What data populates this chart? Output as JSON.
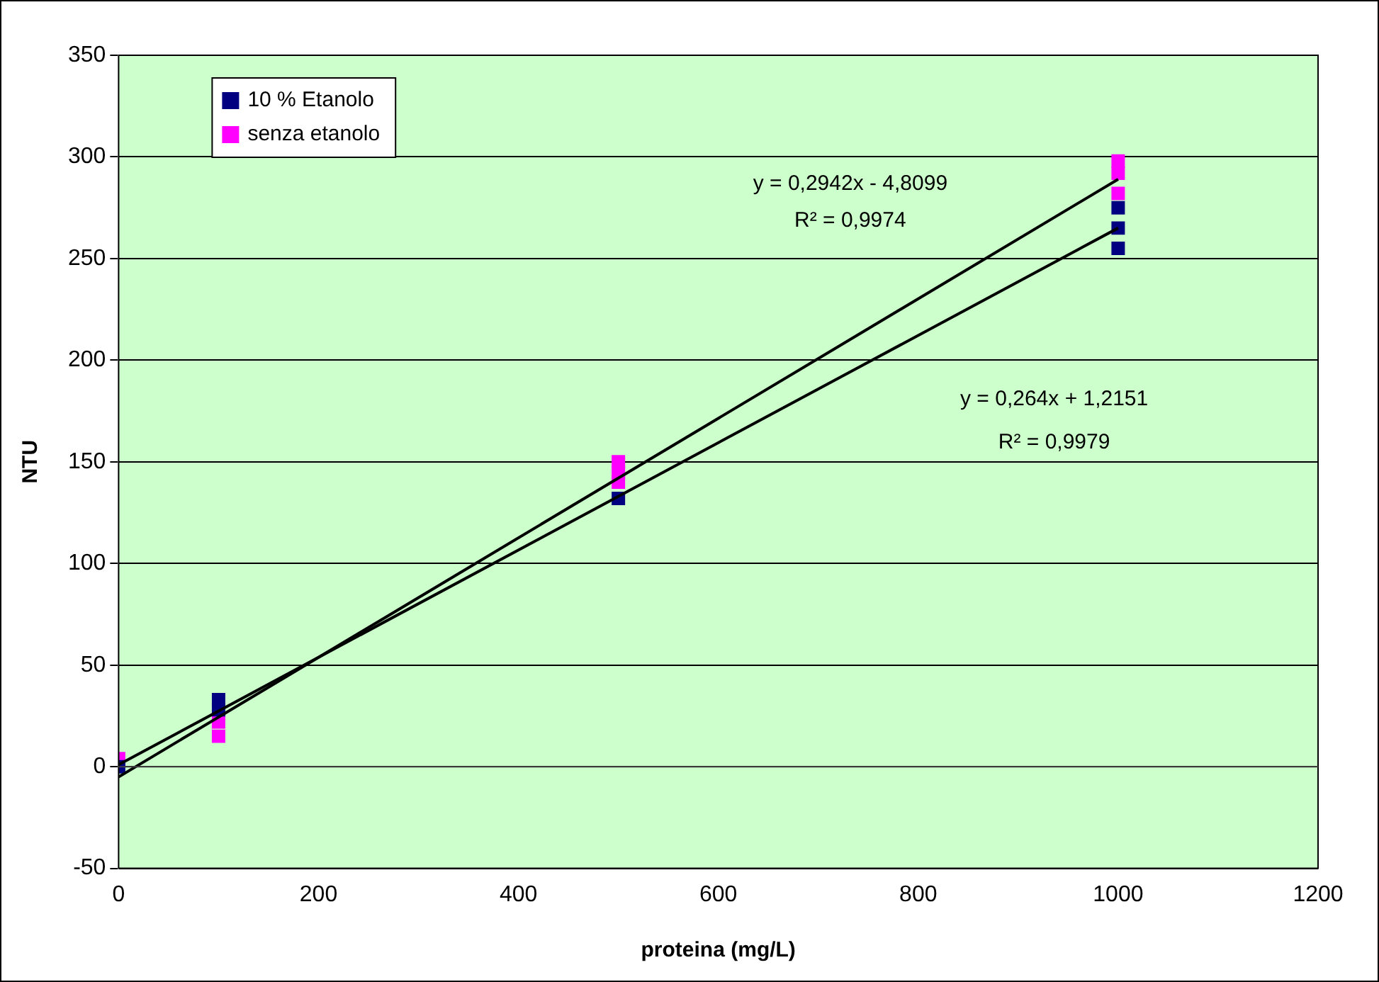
{
  "chart_data": {
    "type": "scatter",
    "xlabel": "proteina (mg/L)",
    "ylabel": "NTU",
    "xlim": [
      0,
      1200
    ],
    "xticks": [
      0,
      200,
      400,
      600,
      800,
      1000,
      1200
    ],
    "ylim": [
      -50,
      350
    ],
    "yticks": [
      -50,
      0,
      50,
      100,
      150,
      200,
      250,
      300,
      350
    ],
    "grid": "y",
    "legend": "top left",
    "marker": "square",
    "series": [
      {
        "name": "10 % Etanolo",
        "color": "#000080",
        "x": [
          0,
          100,
          100,
          500,
          1000,
          1000,
          1000
        ],
        "values": [
          0,
          33,
          28,
          132,
          255,
          265,
          275
        ]
      },
      {
        "name": "senza etanolo",
        "color": "#ff00ff",
        "x": [
          0,
          100,
          100,
          500,
          500,
          500,
          1000,
          1000,
          1000
        ],
        "values": [
          4,
          15,
          22,
          140,
          145,
          150,
          282,
          292,
          298
        ]
      },
      {
        "type": "line",
        "color": "#000000",
        "marker": "none",
        "x": [
          0,
          1000
        ],
        "values": [
          1,
          265
        ]
      },
      {
        "type": "line",
        "color": "#000000",
        "marker": "none",
        "x": [
          0,
          1000
        ],
        "values": [
          -5,
          289
        ]
      }
    ],
    "annotations": [
      "y = 0,2942x - 4,8099",
      "R² = 0,9974",
      "y = 0,264x + 1,2151",
      "R² = 0,9979"
    ]
  }
}
